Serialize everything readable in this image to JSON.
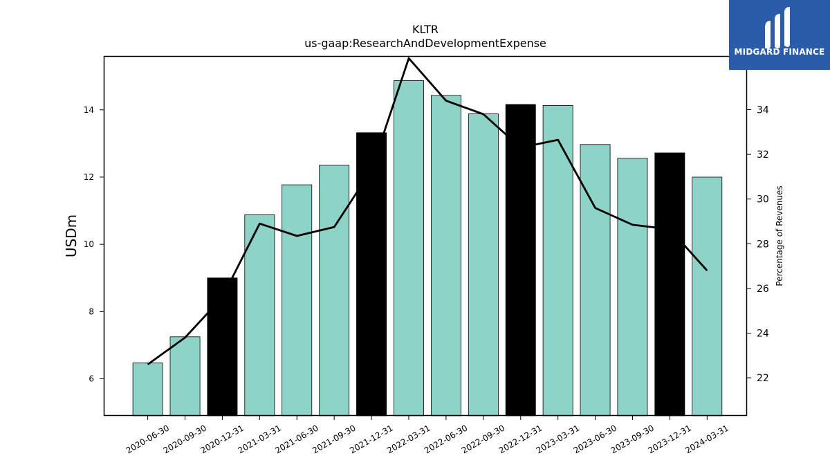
{
  "brand": {
    "name": "MIDGARD FINANCE",
    "bg_color": "#2a5caa",
    "logo_icon": "midgard-logo-icon"
  },
  "chart_data": {
    "type": "bar",
    "title": "KLTR",
    "subtitle": "us-gaap:ResearchAndDevelopmentExpense",
    "ylabel": "USDm",
    "y2label": "Percentage of Revenues",
    "categories": [
      "2020-06-30",
      "2020-09-30",
      "2020-12-31",
      "2021-03-31",
      "2021-06-30",
      "2021-09-30",
      "2021-12-31",
      "2022-03-31",
      "2022-06-30",
      "2022-09-30",
      "2022-12-31",
      "2023-03-31",
      "2023-06-30",
      "2023-09-30",
      "2023-12-31",
      "2024-03-31"
    ],
    "series": [
      {
        "type": "bar",
        "axis": "left",
        "values": [
          6.47,
          7.25,
          9.0,
          10.88,
          11.77,
          12.35,
          13.32,
          14.87,
          14.43,
          13.88,
          14.16,
          14.13,
          12.97,
          12.56,
          12.72,
          12.0
        ],
        "colors": [
          "#8dd3c7",
          "#8dd3c7",
          "#000000",
          "#8dd3c7",
          "#8dd3c7",
          "#8dd3c7",
          "#000000",
          "#8dd3c7",
          "#8dd3c7",
          "#8dd3c7",
          "#000000",
          "#8dd3c7",
          "#8dd3c7",
          "#8dd3c7",
          "#000000",
          "#8dd3c7"
        ]
      },
      {
        "type": "line",
        "axis": "right",
        "color": "#000000",
        "values": [
          22.6,
          23.8,
          25.6,
          28.9,
          28.35,
          28.75,
          31.3,
          36.3,
          34.4,
          33.8,
          32.3,
          32.65,
          29.6,
          28.85,
          28.65,
          26.8
        ]
      }
    ],
    "ylim": [
      4.9,
      15.6
    ],
    "y2lim": [
      20.3,
      36.4
    ],
    "yticks": [
      6,
      8,
      10,
      12,
      14
    ],
    "y2ticks": [
      22,
      24,
      26,
      28,
      30,
      32,
      34
    ],
    "grid": false,
    "legend": "none"
  }
}
